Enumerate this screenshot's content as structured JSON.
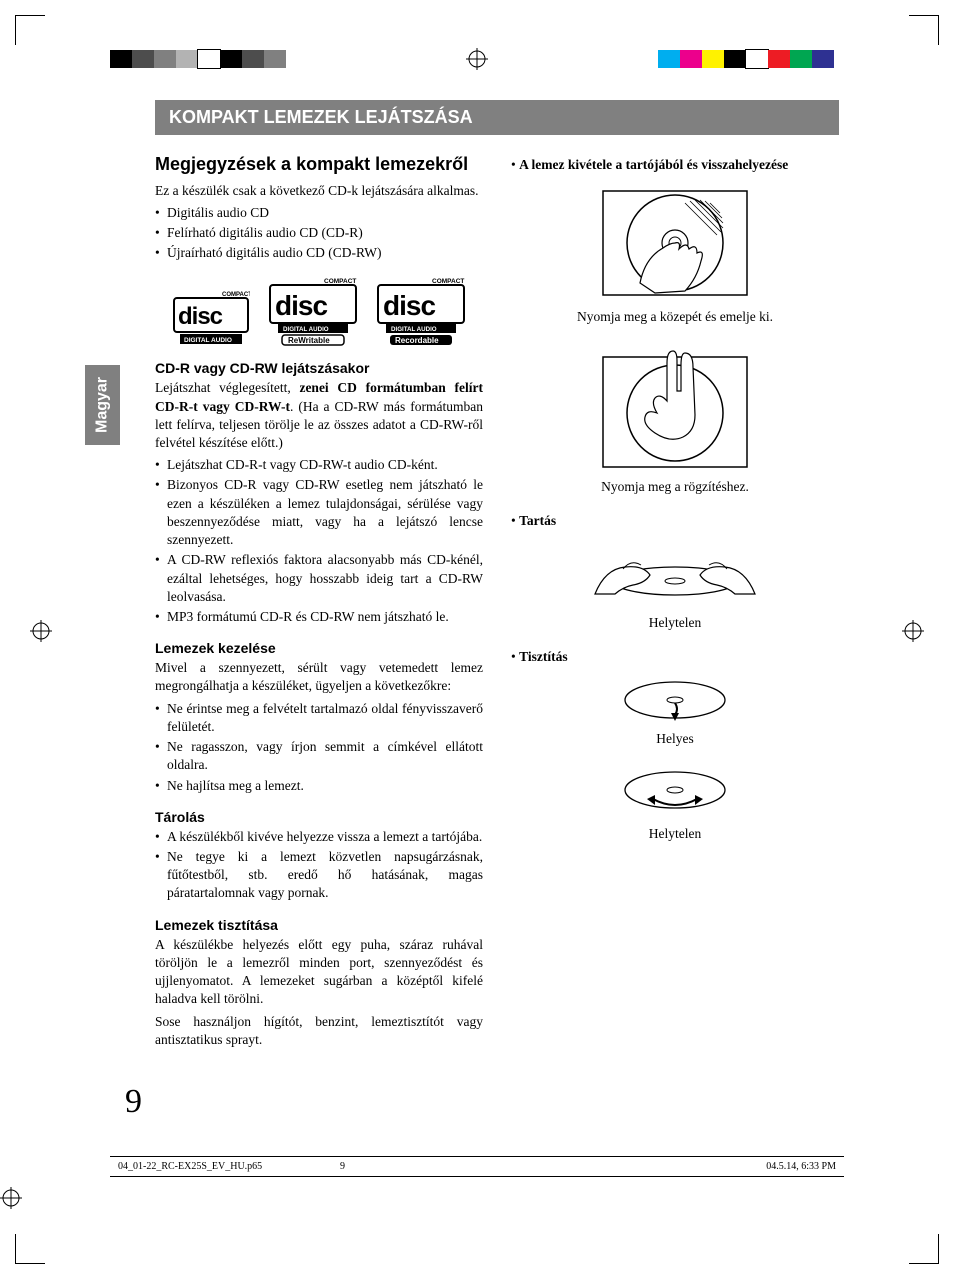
{
  "colors": {
    "header_bg": "#808080",
    "header_text": "#ffffff",
    "body_text": "#000000",
    "page_bg": "#ffffff",
    "tab_bg": "#808080"
  },
  "print_marks": {
    "color_bar_left": [
      "#000000",
      "#4d4d4d",
      "#808080",
      "#b3b3b3",
      "#ffffff",
      "#000000",
      "#4d4d4d",
      "#808080"
    ],
    "color_bar_right": [
      "#00aeef",
      "#ec008c",
      "#fff200",
      "#000000",
      "#ffffff",
      "#ed1c24",
      "#00a651",
      "#2e3192"
    ]
  },
  "side_tab": "Magyar",
  "section_title": "KOMPAKT LEMEZEK LEJÁTSZÁSA",
  "left": {
    "h2": "Megjegyzések a kompakt lemezekről",
    "intro": "Ez a készülék csak a következő CD-k lejátszására alkalmas.",
    "types": [
      "Digitális audio CD",
      "Felírható digitális audio CD (CD-R)",
      "Újraírható digitális audio CD (CD-RW)"
    ],
    "logo_labels": {
      "compact": "COMPACT",
      "disc": "disc",
      "digital_audio": "DIGITAL AUDIO",
      "rewritable": "ReWritable",
      "recordable": "Recordable"
    },
    "h3_cdr": "CD-R vagy CD-RW lejátszásakor",
    "cdr_intro_1": "Lejátszhat véglegesített, ",
    "cdr_intro_bold": "zenei CD formátumban felírt CD-R-t vagy CD-RW-t",
    "cdr_intro_2": ". (Ha a CD-RW más formátumban lett felírva, teljesen törölje le az összes adatot a CD-RW-ről felvétel készítése előtt.)",
    "cdr_bullets": [
      "Lejátszhat CD-R-t vagy CD-RW-t audio CD-ként.",
      "Bizonyos CD-R vagy CD-RW esetleg nem játszható le ezen a készüléken a lemez tulajdonságai, sérülése vagy beszennyeződése miatt, vagy ha a lejátszó lencse szennyezett.",
      "A CD-RW reflexiós faktora alacsonyabb más CD-kénél, ezáltal lehetséges, hogy hosszabb ideig tart a CD-RW leolvasása.",
      "MP3 formátumú CD-R és CD-RW nem játszható le."
    ],
    "h3_handling": "Lemezek kezelése",
    "handling_intro": "Mivel a szennyezett, sérült vagy vetemedett lemez megrongálhatja a készüléket, ügyeljen a következőkre:",
    "handling_bullets": [
      "Ne érintse meg a felvételt tartalmazó oldal fényvisszaverő felületét.",
      "Ne ragasszon, vagy írjon semmit a címkével ellátott oldalra.",
      "Ne hajlítsa meg a lemezt."
    ],
    "h3_storage": "Tárolás",
    "storage_bullets": [
      "A készülékből kivéve helyezze vissza a lemezt a tartójába.",
      "Ne tegye ki a lemezt közvetlen napsugárzásnak, fűtőtestből, stb. eredő hő hatásának, magas páratartalomnak vagy pornak."
    ],
    "h3_cleaning": "Lemezek tisztítása",
    "cleaning_p1": "A készülékbe helyezés előtt egy puha, száraz ruhával töröljön le a lemezről minden port, szennyeződést és ujjlenyomatot. A lemezeket sugárban a középtől kifelé haladva kell törölni.",
    "cleaning_p2": "Sose használjon hígítót, benzint, lemeztisztítót vagy antisztatikus sprayt."
  },
  "right": {
    "label_remove": "A lemez kivétele a tartójából és visszahelyezése",
    "caption_remove": "Nyomja meg a közepét és emelje ki.",
    "caption_press": "Nyomja meg a rögzítéshez.",
    "label_hold": "Tartás",
    "caption_hold": "Helytelen",
    "label_clean": "Tisztítás",
    "caption_clean_correct": "Helyes",
    "caption_clean_wrong": "Helytelen"
  },
  "page_number": "9",
  "footer": {
    "file": "04_01-22_RC-EX25S_EV_HU.p65",
    "page": "9",
    "date": "04.5.14, 6:33 PM"
  }
}
